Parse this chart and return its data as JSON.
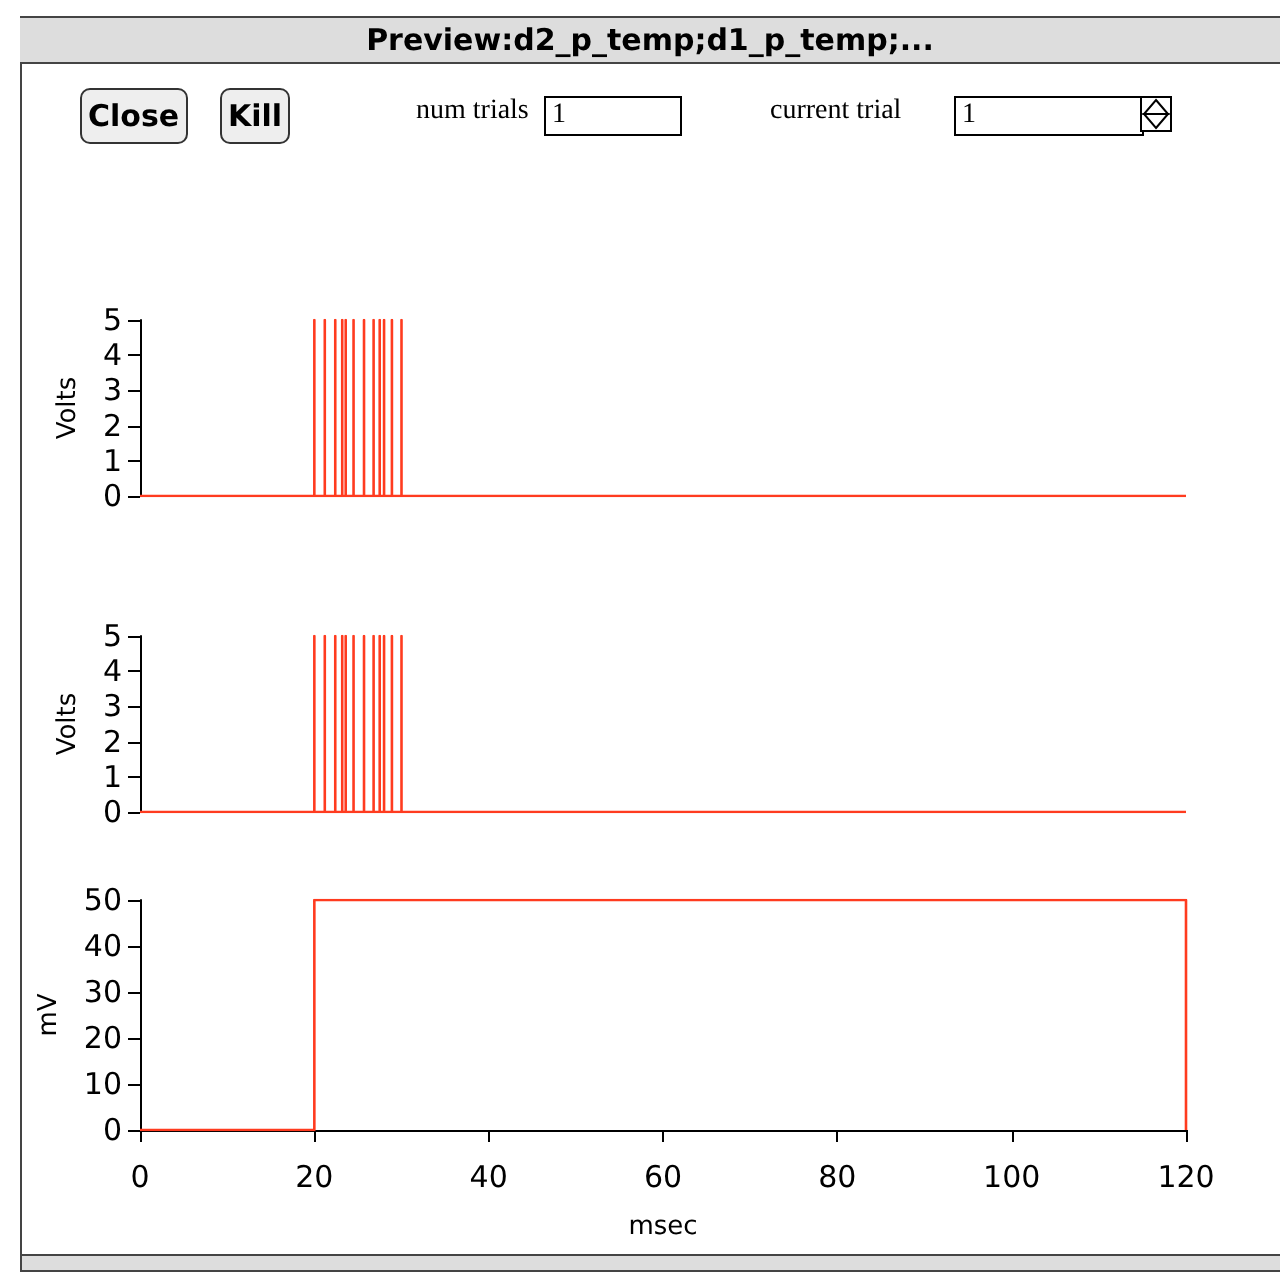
{
  "chart_data": [
    {
      "type": "other",
      "title": "Preview:d2_p_temp;d1_p_temp;...",
      "annotations": [
        "Close",
        "Kill",
        "num trials",
        "1",
        "current trial",
        "1"
      ]
    },
    {
      "type": "line",
      "ylabel": "Volts",
      "color": "#ff3b1f",
      "xlim": [
        0,
        120
      ],
      "ylim": [
        0,
        5
      ],
      "yticks": [
        0,
        1,
        2,
        3,
        4,
        5
      ],
      "tick_labels": "y",
      "x": [
        0,
        20,
        20,
        20,
        21.2,
        21.2,
        21.2,
        22.4,
        22.4,
        22.4,
        23.2,
        23.2,
        23.2,
        23.6,
        23.6,
        23.6,
        24.5,
        24.5,
        24.5,
        25.7,
        25.7,
        25.7,
        26.8,
        26.8,
        26.8,
        27.5,
        27.5,
        27.5,
        28,
        28,
        28,
        28.9,
        28.9,
        28.9,
        30,
        30,
        30,
        120
      ],
      "values": [
        0,
        0,
        5,
        0,
        0,
        5,
        0,
        0,
        5,
        0,
        0,
        5,
        0,
        0,
        5,
        0,
        0,
        5,
        0,
        0,
        5,
        0,
        0,
        5,
        0,
        0,
        5,
        0,
        0,
        5,
        0,
        0,
        5,
        0,
        0,
        5,
        0,
        0
      ]
    },
    {
      "type": "line",
      "ylabel": "Volts",
      "color": "#ff3b1f",
      "xlim": [
        0,
        120
      ],
      "ylim": [
        0,
        5
      ],
      "yticks": [
        0,
        1,
        2,
        3,
        4,
        5
      ],
      "tick_labels": "y",
      "x": [
        0,
        20,
        20,
        20,
        21.2,
        21.2,
        21.2,
        22.4,
        22.4,
        22.4,
        23.2,
        23.2,
        23.2,
        23.6,
        23.6,
        23.6,
        24.5,
        24.5,
        24.5,
        25.7,
        25.7,
        25.7,
        26.8,
        26.8,
        26.8,
        27.5,
        27.5,
        27.5,
        28,
        28,
        28,
        28.9,
        28.9,
        28.9,
        30,
        30,
        30,
        120
      ],
      "values": [
        0,
        0,
        5,
        0,
        0,
        5,
        0,
        0,
        5,
        0,
        0,
        5,
        0,
        0,
        5,
        0,
        0,
        5,
        0,
        0,
        5,
        0,
        0,
        5,
        0,
        0,
        5,
        0,
        0,
        5,
        0,
        0,
        5,
        0,
        0,
        5,
        0,
        0
      ]
    },
    {
      "type": "line",
      "ylabel": "mV",
      "xlabel": "msec",
      "color": "#ff3b1f",
      "xlim": [
        0,
        120
      ],
      "xticks": [
        0,
        20,
        40,
        60,
        80,
        100,
        120
      ],
      "ylim": [
        0,
        50
      ],
      "yticks": [
        0,
        10,
        20,
        30,
        40,
        50
      ],
      "x": [
        0,
        20,
        20,
        120,
        120
      ],
      "values": [
        0,
        0,
        50,
        50,
        0
      ]
    }
  ]
}
